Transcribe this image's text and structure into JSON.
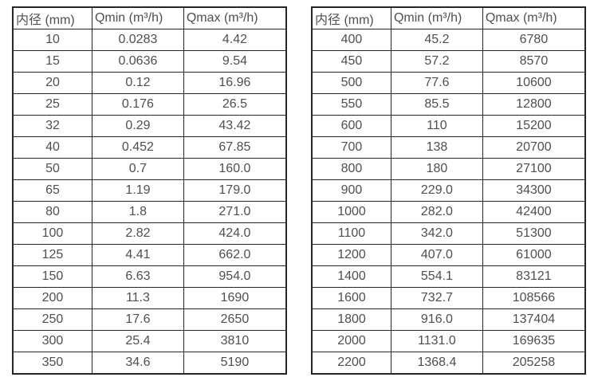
{
  "style": {
    "background": "#ffffff",
    "text_color": "#4f4f4f",
    "border_color": "#262626"
  },
  "chart_data": [
    {
      "type": "table",
      "name": "flow-range-table-small-diameters",
      "headers": [
        "内径 (mm)",
        "Qmin (m³/h)",
        "Qmax (m³/h)"
      ],
      "rows": [
        [
          "10",
          "0.0283",
          "4.42"
        ],
        [
          "15",
          "0.0636",
          "9.54"
        ],
        [
          "20",
          "0.12",
          "16.96"
        ],
        [
          "25",
          "0.176",
          "26.5"
        ],
        [
          "32",
          "0.29",
          "43.42"
        ],
        [
          "40",
          "0.452",
          "67.85"
        ],
        [
          "50",
          "0.7",
          "160.0"
        ],
        [
          "65",
          "1.19",
          "179.0"
        ],
        [
          "80",
          "1.8",
          "271.0"
        ],
        [
          "100",
          "2.82",
          "424.0"
        ],
        [
          "125",
          "4.41",
          "662.0"
        ],
        [
          "150",
          "6.63",
          "954.0"
        ],
        [
          "200",
          "11.3",
          "1690"
        ],
        [
          "250",
          "17.6",
          "2650"
        ],
        [
          "300",
          "25.4",
          "3810"
        ],
        [
          "350",
          "34.6",
          "5190"
        ]
      ]
    },
    {
      "type": "table",
      "name": "flow-range-table-large-diameters",
      "headers": [
        "内径 (mm)",
        "Qmin (m³/h)",
        "Qmax (m³/h)"
      ],
      "rows": [
        [
          "400",
          "45.2",
          "6780"
        ],
        [
          "450",
          "57.2",
          "8570"
        ],
        [
          "500",
          "77.6",
          "10600"
        ],
        [
          "550",
          "85.5",
          "12800"
        ],
        [
          "600",
          "110",
          "15200"
        ],
        [
          "700",
          "138",
          "20700"
        ],
        [
          "800",
          "180",
          "27100"
        ],
        [
          "900",
          "229.0",
          "34300"
        ],
        [
          "1000",
          "282.0",
          "42400"
        ],
        [
          "1100",
          "342.0",
          "51300"
        ],
        [
          "1200",
          "407.0",
          "61000"
        ],
        [
          "1400",
          "554.1",
          "83121"
        ],
        [
          "1600",
          "732.7",
          "108566"
        ],
        [
          "1800",
          "916.0",
          "137404"
        ],
        [
          "2000",
          "1131.0",
          "169635"
        ],
        [
          "2200",
          "1368.4",
          "205258"
        ]
      ]
    }
  ]
}
